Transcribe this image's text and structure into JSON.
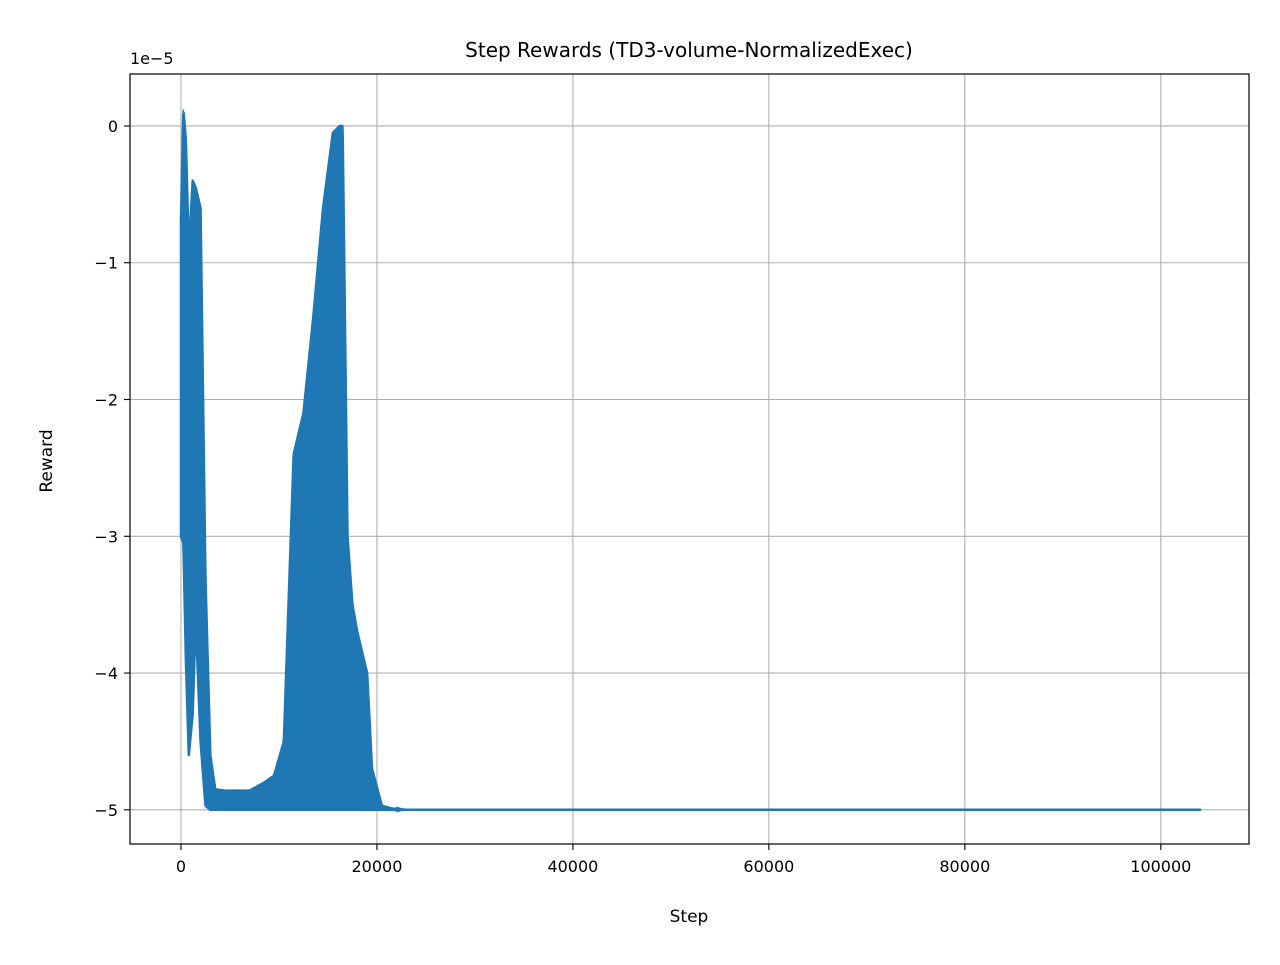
{
  "chart_data": {
    "type": "line",
    "title": "Step Rewards (TD3-volume-NormalizedExec)",
    "xlabel": "Step",
    "ylabel": "Reward",
    "y_offset_label": "1e−5",
    "xlim": [
      -5200,
      109000
    ],
    "ylim": [
      -5.25,
      0.38
    ],
    "x_ticks": [
      0,
      20000,
      40000,
      60000,
      80000,
      100000
    ],
    "x_tick_labels": [
      "0",
      "20000",
      "40000",
      "60000",
      "80000",
      "100000"
    ],
    "y_ticks": [
      0,
      -1,
      -2,
      -3,
      -4,
      -5
    ],
    "y_tick_labels": [
      "0",
      "−1",
      "−2",
      "−3",
      "−4",
      "−5"
    ],
    "grid": true,
    "line_color": "#1f77b4",
    "series": [
      {
        "x_range": [
          0,
          104000
        ],
        "envelope_x": [
          0,
          250,
          500,
          800,
          1200,
          1500,
          2000,
          2500,
          3000,
          3500,
          4500,
          6000,
          7000,
          8500,
          9500,
          10500,
          11500,
          12500,
          13500,
          14500,
          15500,
          16200,
          16500,
          17000,
          17500,
          18000,
          19000,
          19500,
          20500,
          21500,
          23000,
          30000,
          104000
        ],
        "upper": [
          -0.7,
          0.12,
          -0.1,
          -0.9,
          -0.4,
          -0.45,
          -0.6,
          -3.3,
          -4.6,
          -4.85,
          -4.86,
          -4.86,
          -4.86,
          -4.8,
          -4.75,
          -4.5,
          -2.4,
          -2.1,
          -1.4,
          -0.6,
          -0.05,
          0.0,
          0.0,
          -3.0,
          -3.5,
          -3.7,
          -4.0,
          -4.7,
          -4.97,
          -4.99,
          -5.0,
          -5.0,
          -5.0
        ],
        "lower": [
          -3.0,
          -3.05,
          -3.9,
          -4.6,
          -4.3,
          -3.6,
          -4.5,
          -4.97,
          -5.0,
          -5.0,
          -5.0,
          -5.0,
          -5.0,
          -5.0,
          -5.0,
          -5.0,
          -5.0,
          -5.0,
          -5.0,
          -5.0,
          -5.0,
          -5.0,
          -5.0,
          -5.0,
          -5.0,
          -5.0,
          -5.0,
          -5.0,
          -5.0,
          -5.0,
          -5.0,
          -5.0,
          -5.0
        ]
      }
    ]
  }
}
